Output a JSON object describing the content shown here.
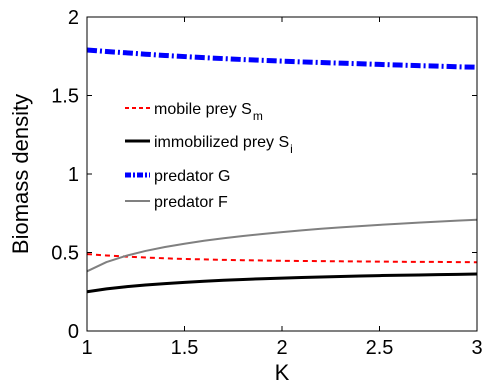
{
  "chart_data": {
    "type": "line",
    "xlabel": "K",
    "ylabel": "Biomass density",
    "xlim": [
      1,
      3
    ],
    "ylim": [
      0,
      2
    ],
    "xticks": [
      "1",
      "1.5",
      "2",
      "2.5",
      "3"
    ],
    "xtick_values": [
      1,
      1.5,
      2,
      2.5,
      3
    ],
    "yticks": [
      "0",
      "0.5",
      "1",
      "1.5",
      "2"
    ],
    "ytick_values": [
      0,
      0.5,
      1,
      1.5,
      2
    ],
    "grid": false,
    "legend_position": "upper-left",
    "x": [
      1,
      1.1,
      1.2,
      1.3,
      1.4,
      1.5,
      1.6,
      1.7,
      1.8,
      1.9,
      2,
      2.1,
      2.2,
      2.3,
      2.4,
      2.5,
      2.6,
      2.7,
      2.8,
      2.9,
      3
    ],
    "series": [
      {
        "name": "mobile prey S",
        "subscript": "m",
        "color": "#ff0000",
        "style": "dashed",
        "values": [
          0.49,
          0.481,
          0.474,
          0.468,
          0.463,
          0.459,
          0.456,
          0.453,
          0.451,
          0.449,
          0.447,
          0.446,
          0.445,
          0.444,
          0.443,
          0.442,
          0.441,
          0.44,
          0.44,
          0.439,
          0.438
        ]
      },
      {
        "name": "immobilized prey S",
        "subscript": "i",
        "color": "#000000",
        "style": "solid",
        "values": [
          0.25,
          0.268,
          0.282,
          0.293,
          0.302,
          0.31,
          0.317,
          0.323,
          0.328,
          0.333,
          0.337,
          0.341,
          0.344,
          0.347,
          0.35,
          0.353,
          0.355,
          0.357,
          0.359,
          0.361,
          0.363
        ]
      },
      {
        "name": "predator G",
        "subscript": "",
        "color": "#0000ff",
        "style": "dashdot",
        "values": [
          1.79,
          1.78,
          1.772,
          1.763,
          1.755,
          1.748,
          1.741,
          1.735,
          1.729,
          1.724,
          1.719,
          1.714,
          1.71,
          1.706,
          1.702,
          1.698,
          1.694,
          1.69,
          1.687,
          1.683,
          1.68
        ]
      },
      {
        "name": "predator F",
        "subscript": "",
        "color": "#808080",
        "style": "solid",
        "values": [
          0.38,
          0.439,
          0.479,
          0.51,
          0.535,
          0.556,
          0.575,
          0.591,
          0.605,
          0.618,
          0.63,
          0.641,
          0.651,
          0.66,
          0.668,
          0.676,
          0.683,
          0.69,
          0.697,
          0.703,
          0.709
        ]
      }
    ]
  }
}
